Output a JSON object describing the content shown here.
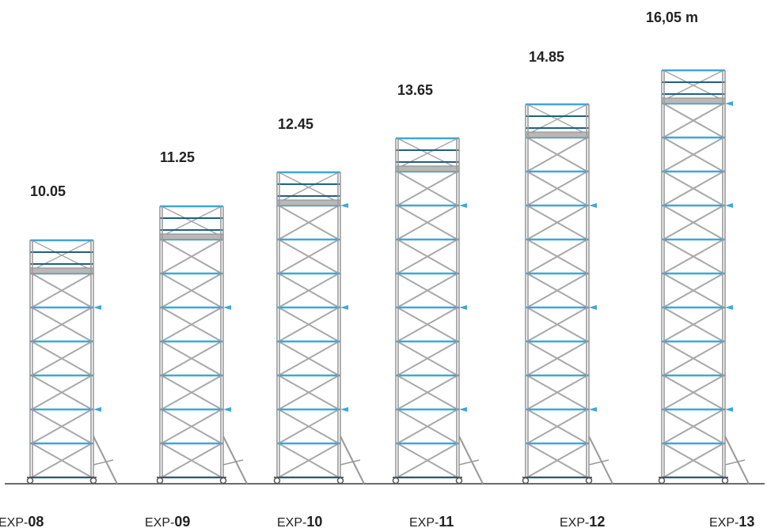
{
  "colors": {
    "frame": "#9a9a9a",
    "brace": "#a8a8a8",
    "rail": "#3ea7d6",
    "rail_dark": "#1f5f86",
    "platform": "#b8b8b8",
    "ground": "#3a3a3a",
    "wheel": "#555555"
  },
  "towers": [
    {
      "height_label": "10.05",
      "model_prefix": "EXP-",
      "model_number": "08",
      "levels": 6
    },
    {
      "height_label": "11.25",
      "model_prefix": "EXP-",
      "model_number": "09",
      "levels": 7
    },
    {
      "height_label": "12.45",
      "model_prefix": "EXP-",
      "model_number": "10",
      "levels": 8
    },
    {
      "height_label": "13.65",
      "model_prefix": "EXP-",
      "model_number": "11",
      "levels": 9
    },
    {
      "height_label": "14.85",
      "model_prefix": "EXP-",
      "model_number": "12",
      "levels": 10
    },
    {
      "height_label": "16,05 m",
      "model_prefix": "EXP-",
      "model_number": "13",
      "levels": 11
    }
  ]
}
